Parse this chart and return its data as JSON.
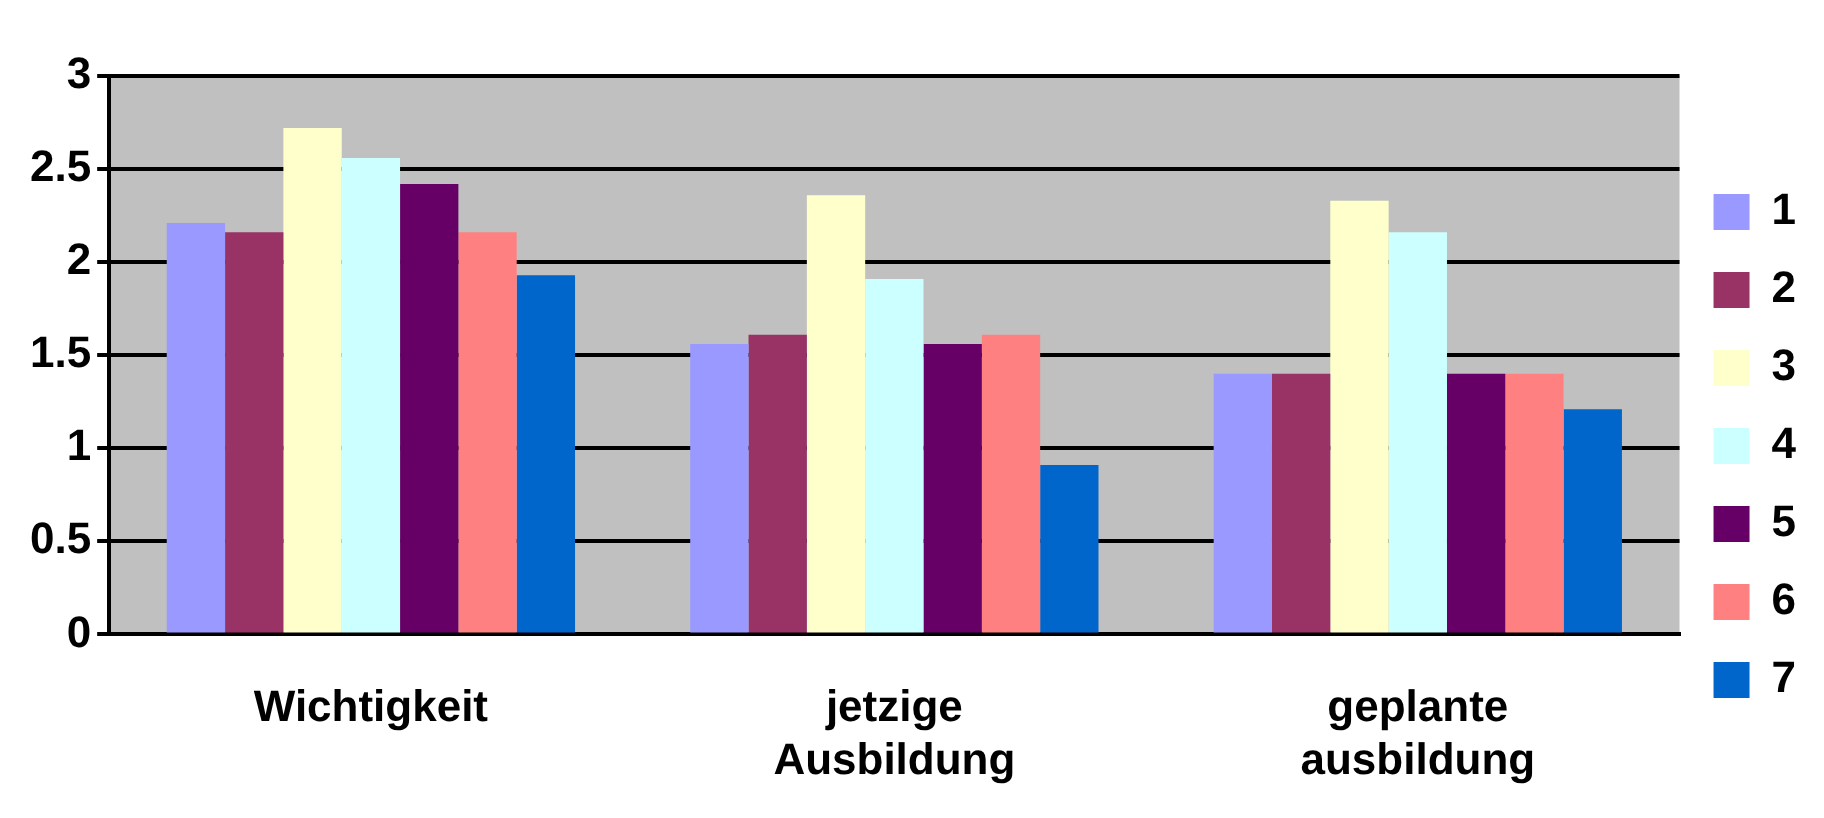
{
  "chart_data": {
    "type": "bar",
    "categories": [
      "Wichtigkeit",
      "jetzige\nAusbildung",
      "geplante\nausbildung"
    ],
    "series": [
      {
        "name": "1",
        "color": "#9999ff",
        "values": [
          2.21,
          1.56,
          1.4
        ]
      },
      {
        "name": "2",
        "color": "#993366",
        "values": [
          2.16,
          1.61,
          1.4
        ]
      },
      {
        "name": "3",
        "color": "#ffffcc",
        "values": [
          2.72,
          2.36,
          2.33
        ]
      },
      {
        "name": "4",
        "color": "#ccffff",
        "values": [
          2.56,
          1.91,
          2.16
        ]
      },
      {
        "name": "5",
        "color": "#660066",
        "values": [
          2.42,
          1.56,
          1.4
        ]
      },
      {
        "name": "6",
        "color": "#ff8080",
        "values": [
          2.16,
          1.61,
          1.4
        ]
      },
      {
        "name": "7",
        "color": "#0066cc",
        "values": [
          1.93,
          0.91,
          1.21
        ]
      }
    ],
    "ylim": [
      0,
      3
    ],
    "yticks": [
      0,
      0.5,
      1,
      1.5,
      2,
      2.5,
      3
    ],
    "grid": "y",
    "legend": "right"
  }
}
